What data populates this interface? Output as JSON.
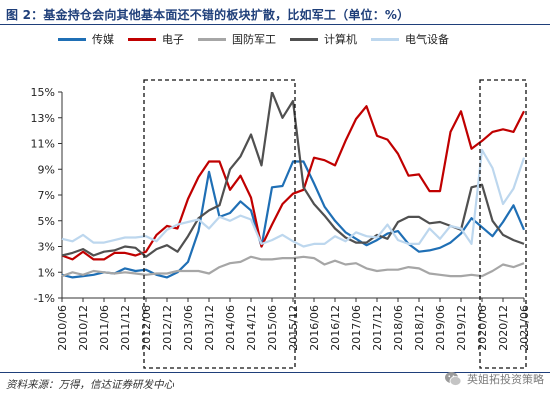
{
  "title": "图 2：基金持仓会向其他基本面还不错的板块扩散，比如军工（单位：%）",
  "source": "资料来源：万得，信达证券研发中心",
  "watermark": "英姐拓投资策略",
  "watermark_icon": "wechat-icon",
  "chart_data": {
    "type": "line",
    "categories": [
      "2010/06",
      "2010/09",
      "2010/12",
      "2011/03",
      "2011/06",
      "2011/09",
      "2011/12",
      "2012/03",
      "2012/06",
      "2012/09",
      "2012/12",
      "2013/03",
      "2013/06",
      "2013/09",
      "2013/12",
      "2014/03",
      "2014/06",
      "2014/09",
      "2014/12",
      "2015/03",
      "2015/06",
      "2015/09",
      "2015/12",
      "2016/03",
      "2016/06",
      "2016/09",
      "2016/12",
      "2017/03",
      "2017/06",
      "2017/09",
      "2017/12",
      "2018/03",
      "2018/06",
      "2018/09",
      "2018/12",
      "2019/03",
      "2019/06",
      "2019/09",
      "2019/12",
      "2020/03",
      "2020/06",
      "2020/09",
      "2020/12",
      "2021/03",
      "2021/06"
    ],
    "tick_labels": [
      "2010/06",
      "2010/12",
      "2011/06",
      "2011/12",
      "2012/06",
      "2012/12",
      "2013/06",
      "2013/12",
      "2014/06",
      "2014/12",
      "2015/06",
      "2015/12",
      "2016/06",
      "2016/12",
      "2017/06",
      "2017/12",
      "2018/06",
      "2018/12",
      "2019/06",
      "2019/12",
      "2020/06",
      "2020/12",
      "2021/06"
    ],
    "y_ticks": [
      "-1%",
      "1%",
      "3%",
      "5%",
      "7%",
      "9%",
      "11%",
      "13%",
      "15%"
    ],
    "ylim": [
      -1,
      15
    ],
    "series": [
      {
        "name": "传媒",
        "color": "#1f6fb5",
        "values": [
          0.8,
          0.6,
          0.7,
          0.8,
          1.0,
          0.9,
          1.3,
          1.1,
          1.2,
          0.8,
          0.6,
          1.0,
          1.8,
          4.2,
          8.8,
          5.3,
          5.6,
          6.5,
          5.8,
          3.0,
          7.6,
          7.7,
          9.6,
          9.6,
          7.9,
          6.1,
          5.0,
          4.1,
          3.6,
          3.1,
          3.5,
          4.0,
          4.2,
          3.2,
          2.6,
          2.7,
          2.9,
          3.3,
          4.0,
          5.2,
          4.5,
          3.8,
          4.9,
          6.2,
          4.3
        ]
      },
      {
        "name": "电子",
        "color": "#c00000",
        "values": [
          2.3,
          2.0,
          2.6,
          2.0,
          2.0,
          2.5,
          2.5,
          2.3,
          2.6,
          3.9,
          4.6,
          4.4,
          6.7,
          8.4,
          9.6,
          9.6,
          7.4,
          8.5,
          6.8,
          3.0,
          4.7,
          6.3,
          7.1,
          7.4,
          9.9,
          9.7,
          9.3,
          11.2,
          12.9,
          13.9,
          11.6,
          11.3,
          10.2,
          8.5,
          8.6,
          7.3,
          7.3,
          11.9,
          13.5,
          10.6,
          11.2,
          11.9,
          12.1,
          11.9,
          13.5
        ]
      },
      {
        "name": "国防军工",
        "color": "#a6a6a6",
        "values": [
          0.7,
          1.0,
          0.8,
          1.1,
          1.0,
          0.9,
          1.0,
          0.9,
          0.8,
          0.9,
          0.9,
          1.1,
          1.1,
          1.1,
          0.9,
          1.4,
          1.7,
          1.8,
          2.2,
          2.0,
          2.0,
          2.1,
          2.1,
          2.2,
          2.1,
          1.6,
          1.9,
          1.6,
          1.7,
          1.3,
          1.1,
          1.2,
          1.2,
          1.4,
          1.3,
          0.9,
          0.8,
          0.7,
          0.7,
          0.8,
          0.7,
          1.1,
          1.6,
          1.4,
          1.7
        ]
      },
      {
        "name": "计算机",
        "color": "#505050",
        "values": [
          2.3,
          2.5,
          2.8,
          2.3,
          2.6,
          2.7,
          3.0,
          2.9,
          2.2,
          2.8,
          3.1,
          2.6,
          3.8,
          5.2,
          5.8,
          6.2,
          9.0,
          10.0,
          11.7,
          9.3,
          16.0,
          13.0,
          14.3,
          7.6,
          6.3,
          5.4,
          4.4,
          3.7,
          3.3,
          3.3,
          3.9,
          3.6,
          4.9,
          5.3,
          5.3,
          4.8,
          4.9,
          4.6,
          4.3,
          7.6,
          7.8,
          5.0,
          3.9,
          3.5,
          3.2
        ]
      },
      {
        "name": "电气设备",
        "color": "#bdd7ee",
        "values": [
          3.6,
          3.4,
          3.9,
          3.3,
          3.3,
          3.5,
          3.7,
          3.7,
          3.8,
          3.4,
          4.3,
          4.7,
          4.9,
          5.1,
          4.4,
          5.3,
          5.0,
          5.4,
          5.1,
          3.2,
          3.5,
          3.9,
          3.4,
          3.0,
          3.2,
          3.2,
          3.8,
          3.4,
          4.1,
          3.8,
          3.7,
          4.7,
          3.5,
          3.2,
          3.2,
          4.4,
          3.6,
          4.6,
          4.4,
          3.2,
          10.5,
          9.1,
          6.3,
          7.5,
          9.9
        ]
      }
    ],
    "highlight_ranges": [
      [
        "2012/06",
        "2015/12"
      ],
      [
        "2020/06",
        "2021/06"
      ]
    ],
    "grid": false,
    "legend": "top"
  }
}
